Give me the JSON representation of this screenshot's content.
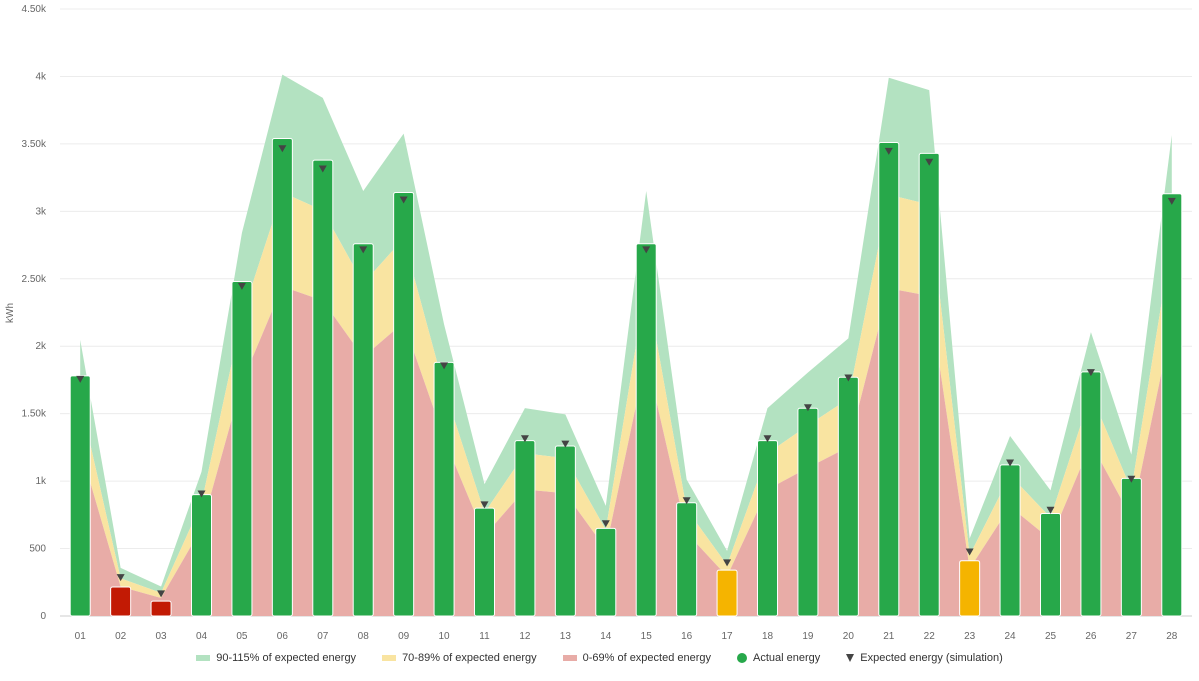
{
  "chart_data": {
    "type": "bar",
    "ylabel": "kWh",
    "ylim": [
      0,
      4500
    ],
    "yticks": [
      0,
      500,
      1000,
      1500,
      2000,
      2500,
      3000,
      3500,
      4000,
      4500
    ],
    "ytick_labels": [
      "0",
      "500",
      "1k",
      "1.50k",
      "2k",
      "2.50k",
      "3k",
      "3.50k",
      "4k",
      "4.50k"
    ],
    "grid": true,
    "legend_placement": "bottom",
    "categories": [
      "01",
      "02",
      "03",
      "04",
      "05",
      "06",
      "07",
      "08",
      "09",
      "10",
      "11",
      "12",
      "13",
      "14",
      "15",
      "16",
      "17",
      "18",
      "19",
      "20",
      "21",
      "22",
      "23",
      "24",
      "25",
      "26",
      "27",
      "28"
    ],
    "series": [
      {
        "name": "Actual energy",
        "values": [
          1780,
          215,
          110,
          900,
          2480,
          3540,
          3380,
          2760,
          3140,
          1880,
          800,
          1300,
          1260,
          650,
          2760,
          840,
          340,
          1300,
          1540,
          1770,
          3510,
          3430,
          410,
          1120,
          760,
          1810,
          1020,
          3130
        ]
      },
      {
        "name": "Expected energy (simulation)",
        "values": [
          1780,
          310,
          190,
          930,
          2470,
          3490,
          3340,
          2740,
          3110,
          1880,
          850,
          1340,
          1300,
          710,
          2740,
          880,
          420,
          1340,
          1570,
          1790,
          3470,
          3390,
          500,
          1160,
          810,
          1830,
          1040,
          3100
        ]
      }
    ],
    "bands": [
      {
        "name": "90-115% of expected energy",
        "from": 0.9,
        "to": 1.15,
        "color": "#b3e2c1"
      },
      {
        "name": "70-89% of expected energy",
        "from": 0.7,
        "to": 0.9,
        "color": "#f9e4a1"
      },
      {
        "name": "0-69% of expected energy",
        "from": 0,
        "to": 0.7,
        "color": "#e8aca7"
      }
    ],
    "colors": {
      "good": "#27a84a",
      "warn": "#f5b400",
      "bad": "#c21a04",
      "expected_marker": "#444444"
    }
  },
  "legend": {
    "band_high": "90-115% of expected energy",
    "band_mid": "70-89% of expected energy",
    "band_low": "0-69% of expected energy",
    "actual": "Actual energy",
    "expected": "Expected energy (simulation)"
  }
}
